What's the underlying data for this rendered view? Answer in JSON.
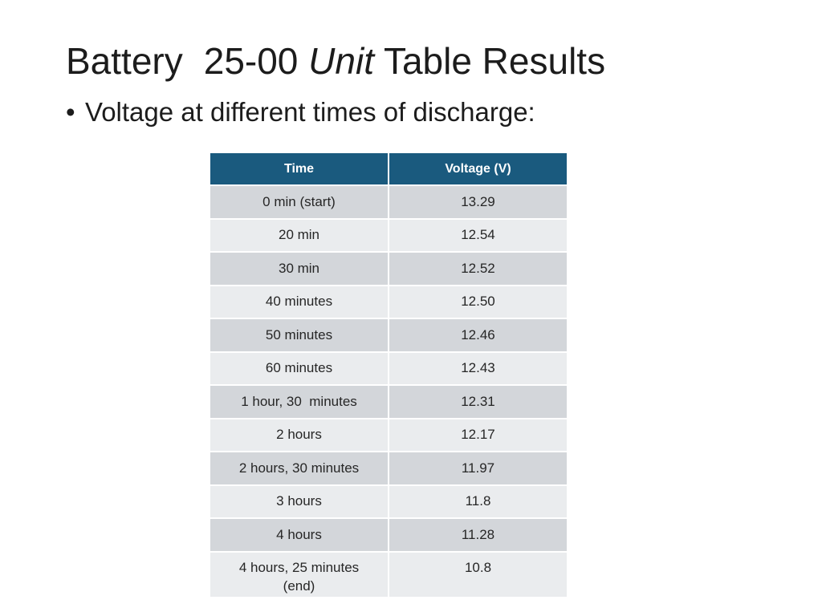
{
  "slide": {
    "title_part1": "Battery",
    "title_part2": "25-00",
    "title_italic": "Unit",
    "title_part3": "Table Results",
    "bullet_symbol": "•",
    "bullet_text": "Voltage at different times of discharge:"
  },
  "table": {
    "headers": [
      "Time",
      "Voltage (V)"
    ],
    "rows": [
      [
        "0 min (start)",
        "13.29"
      ],
      [
        "20 min",
        "12.54"
      ],
      [
        "30 min",
        "12.52"
      ],
      [
        "40 minutes",
        "12.50"
      ],
      [
        "50 minutes",
        "12.46"
      ],
      [
        "60 minutes",
        "12.43"
      ],
      [
        "1 hour, 30  minutes",
        "12.31"
      ],
      [
        "2 hours",
        "12.17"
      ],
      [
        "2 hours, 30 minutes",
        "11.97"
      ],
      [
        "3 hours",
        "11.8"
      ],
      [
        "4 hours",
        "11.28"
      ],
      [
        "4 hours, 25 minutes (end)",
        "10.8"
      ]
    ]
  },
  "colors": {
    "header_bg": "#1a5a7e",
    "row_dark": "#d3d6da",
    "row_light": "#eaecee"
  }
}
